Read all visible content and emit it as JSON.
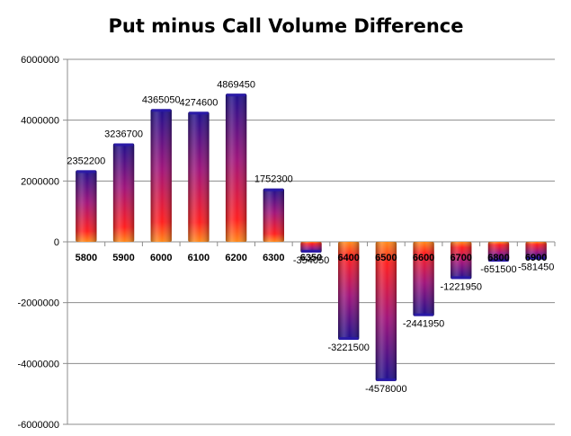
{
  "chart_data": {
    "type": "bar",
    "title": "Put minus Call Volume Difference",
    "xlabel": "",
    "ylabel": "",
    "categories": [
      "5800",
      "5900",
      "6000",
      "6100",
      "6200",
      "6300",
      "6350",
      "6400",
      "6500",
      "6600",
      "6700",
      "6800",
      "6900"
    ],
    "values": [
      2352200,
      3236700,
      4365050,
      4274600,
      4869450,
      1752300,
      -354050,
      -3221500,
      -4578000,
      -2441950,
      -1221950,
      -651500,
      -581450
    ],
    "data_labels": [
      "2352200",
      "3236700",
      "4365050",
      "4274600",
      "4869450",
      "1752300",
      "-354050",
      "-3221500",
      "-4578000",
      "-2441950",
      "-1221950",
      "-651500",
      "-581450"
    ],
    "ylim": [
      -6000000,
      6000000
    ],
    "yticks": [
      6000000,
      4000000,
      2000000,
      0,
      -2000000,
      -4000000,
      -6000000
    ],
    "ytick_labels": [
      "6000000",
      "4000000",
      "2000000",
      "0",
      "-2000000",
      "-4000000",
      "-6000000"
    ],
    "grid": true,
    "legend": "none",
    "colors": {
      "bar_top": "#1c0f8c",
      "bar_mid": "#a0147a",
      "bar_base": "#ff1f1f",
      "bar_glow": "#ff8a1a",
      "grid": "#8c8c8c",
      "axis": "#8c8c8c"
    }
  }
}
